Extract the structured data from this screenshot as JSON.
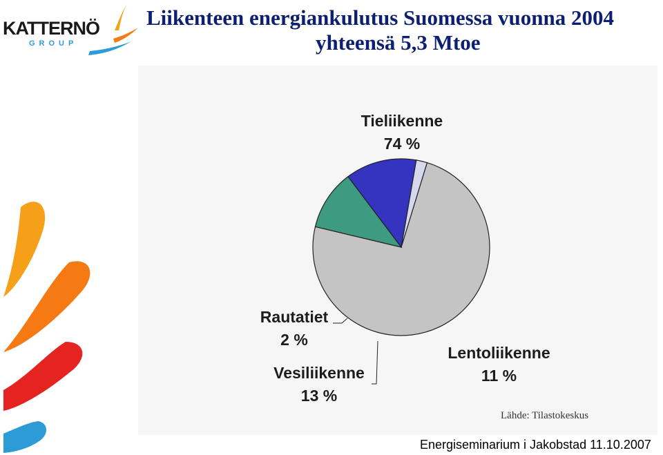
{
  "brand": {
    "name": "KATTERNÖ",
    "group": "GROUP"
  },
  "slide": {
    "title": "Liikenteen energiankulutus Suomessa vuonna 2004",
    "subtitle": "yhteensä 5,3 Mtoe",
    "source": "Lähde: Tilastokeskus",
    "footer": "Energiseminarium i Jakobstad 11.10.2007"
  },
  "colors": {
    "title": "#0c1f70",
    "tieliikenne": "#c4c4c4",
    "lentoliikenne": "#3f9a82",
    "vesiliikenne": "#3434c0",
    "rautatiet": "#d8d8ec",
    "logo_swoosh": [
      "#f6a01a",
      "#f57a14",
      "#e52320",
      "#2d9bd6"
    ]
  },
  "chart_data": {
    "type": "pie",
    "slices": [
      {
        "label": "Tieliikenne",
        "value": 74,
        "value_label": "74 %",
        "color": "#c4c4c4"
      },
      {
        "label": "Lentoliikenne",
        "value": 11,
        "value_label": "11 %",
        "color": "#3f9a82"
      },
      {
        "label": "Vesiliikenne",
        "value": 13,
        "value_label": "13 %",
        "color": "#3434c0"
      },
      {
        "label": "Rautatiet",
        "value": 2,
        "value_label": "2 %",
        "color": "#d8d8ec"
      }
    ]
  }
}
